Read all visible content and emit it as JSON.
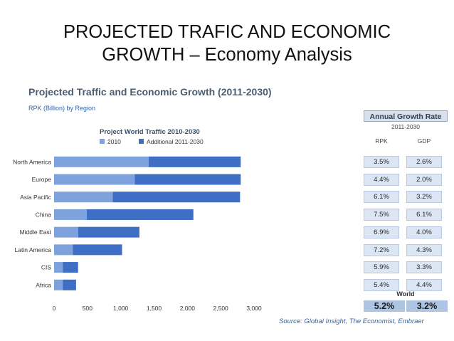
{
  "slide": {
    "title_line1": "PROJECTED TRAFIC AND ECONOMIC",
    "title_line2": "GROWTH – Economy Analysis"
  },
  "chart_data": {
    "type": "bar",
    "orientation": "horizontal",
    "stacked": true,
    "title": "Projected Traffic and Economic Growth (2011-2030)",
    "subtitle": "RPK (Billion) by Region",
    "inner_title": "Project World Traffic 2010-2030",
    "categories": [
      "North America",
      "Europe",
      "Asia Pacific",
      "China",
      "Middle East",
      "Latin America",
      "CIS",
      "Africa"
    ],
    "series": [
      {
        "name": "2010",
        "color": "#7ea3dc",
        "values": [
          1420,
          1210,
          880,
          490,
          360,
          280,
          130,
          130
        ]
      },
      {
        "name": "Additional 2011-2030",
        "color": "#3f6fc4",
        "values": [
          1380,
          1590,
          1910,
          1600,
          920,
          740,
          230,
          200
        ]
      }
    ],
    "x_ticks": [
      "0",
      "500",
      "1,000",
      "1,500",
      "2,000",
      "2,500",
      "3,000"
    ],
    "xlim": [
      0,
      3000
    ],
    "source": "Source: Global Insight, The Economist, Embraer"
  },
  "growth_table": {
    "title": "Annual Growth Rate",
    "period": "2011-2030",
    "col_rpk": "RPK",
    "col_gdp": "GDP",
    "rows": [
      {
        "rpk": "3.5%",
        "gdp": "2.6%"
      },
      {
        "rpk": "4.4%",
        "gdp": "2.0%"
      },
      {
        "rpk": "6.1%",
        "gdp": "3.2%"
      },
      {
        "rpk": "7.5%",
        "gdp": "6.1%"
      },
      {
        "rpk": "6.9%",
        "gdp": "4.0%"
      },
      {
        "rpk": "7.2%",
        "gdp": "4.3%"
      },
      {
        "rpk": "5.9%",
        "gdp": "3.3%"
      },
      {
        "rpk": "5.4%",
        "gdp": "4.4%"
      }
    ],
    "world_label": "World",
    "world_rpk": "5.2%",
    "world_gdp": "3.2%"
  }
}
